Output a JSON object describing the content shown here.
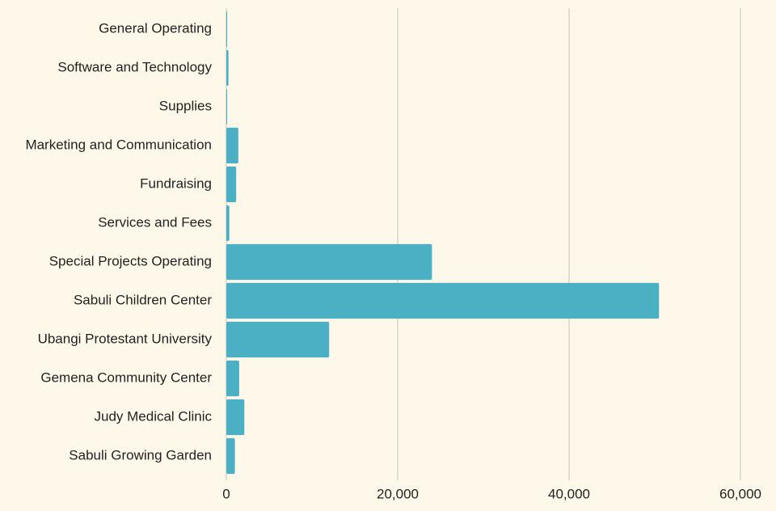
{
  "chart_data": {
    "type": "bar",
    "orientation": "horizontal",
    "categories": [
      "General Operating",
      "Software and Technology",
      "Supplies",
      "Marketing and Communication",
      "Fundraising",
      "Services and Fees",
      "Special Projects Operating",
      "Sabuli Children Center",
      "Ubangi Protestant University",
      "Gemena Community Center",
      "Judy Medical Clinic",
      "Sabuli Growing Garden"
    ],
    "values": [
      100,
      250,
      100,
      1400,
      1150,
      350,
      24000,
      50500,
      12000,
      1500,
      2100,
      1000
    ],
    "color": "#4cb0c4",
    "xlim": [
      0,
      60000
    ],
    "xticks": [
      0,
      {
        "value": 20000,
        "label": "20,000"
      },
      {
        "value": 40000,
        "label": "40,000"
      },
      {
        "value": 60000,
        "label": "60,000"
      }
    ],
    "grid": true
  }
}
